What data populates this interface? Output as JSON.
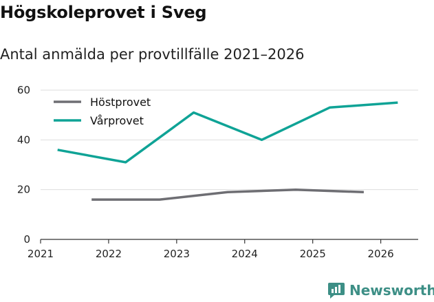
{
  "chart_data": {
    "type": "line",
    "title": "Högskoleprovet i Sveg",
    "subtitle": "Antal anmälda per provtillfälle 2021–2026",
    "xlabel": "",
    "ylabel": "",
    "xlim": [
      2021,
      2026.55
    ],
    "ylim": [
      0,
      60
    ],
    "x_ticks": [
      "2021",
      "2022",
      "2023",
      "2024",
      "2025",
      "2026"
    ],
    "y_ticks": [
      "0",
      "20",
      "40",
      "60"
    ],
    "grid": true,
    "legend_position": "top-left",
    "series": [
      {
        "name": "Höstprovet",
        "color": "#6e6e73",
        "x": [
          2021.75,
          2022.75,
          2023.75,
          2024.75,
          2025.75
        ],
        "values": [
          16,
          16,
          19,
          20,
          19
        ]
      },
      {
        "name": "Vårprovet",
        "color": "#0fa396",
        "x": [
          2021.25,
          2022.25,
          2023.25,
          2024.25,
          2025.25,
          2026.25
        ],
        "values": [
          36,
          31,
          51,
          40,
          53,
          55
        ]
      }
    ]
  },
  "brand": {
    "name": "Newsworthy",
    "icon": "newsworthy-logo-icon",
    "color": "#3d8f86"
  }
}
